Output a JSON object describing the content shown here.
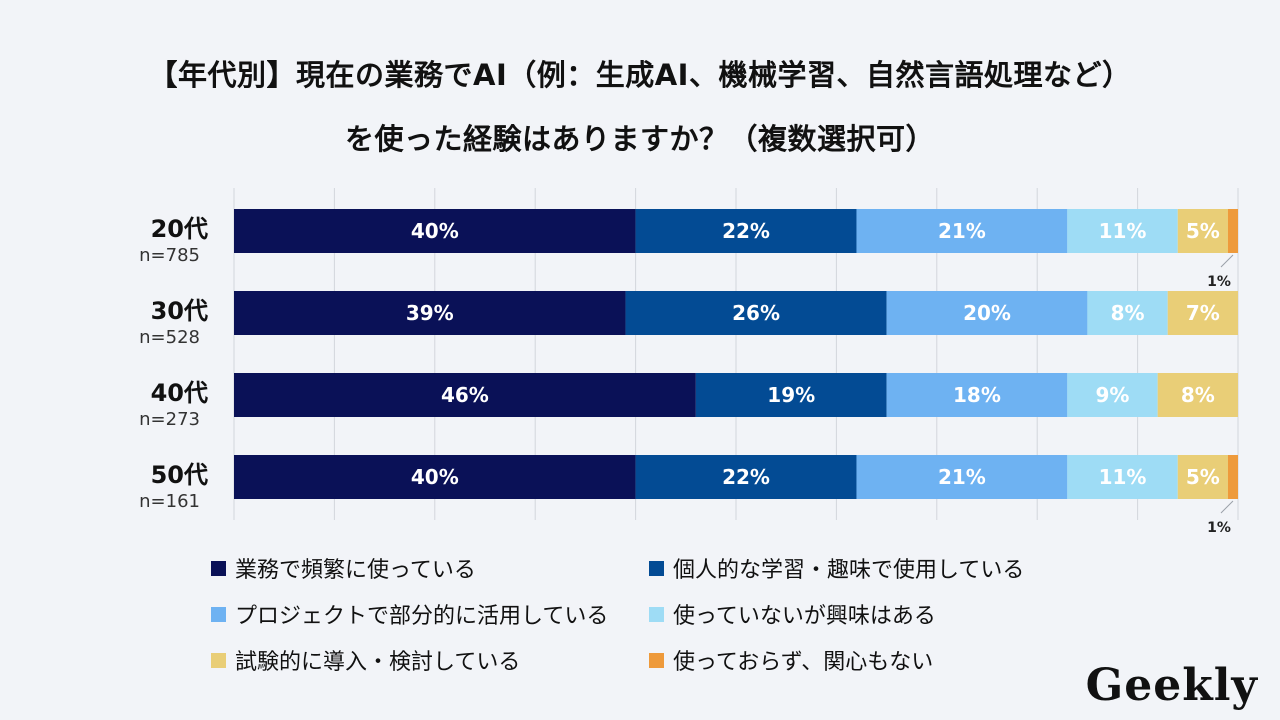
{
  "title": {
    "line1": "【年代別】現在の業務でAI（例：生成AI、機械学習、自然言語処理など）",
    "line2": "を使った経験はありますか？（複数選択可）"
  },
  "chart_data": {
    "type": "bar",
    "orientation": "horizontal-stacked-100",
    "categories": [
      "20代",
      "30代",
      "40代",
      "50代"
    ],
    "sample_sizes": [
      "n=785",
      "n=528",
      "n=273",
      "n=161"
    ],
    "series": [
      {
        "name": "業務で頻繁に使っている",
        "color": "#0a1157",
        "values": [
          40,
          39,
          46,
          40
        ],
        "labels": [
          "40%",
          "39%",
          "46%",
          "40%"
        ]
      },
      {
        "name": "個人的な学習・趣味で使用している",
        "color": "#034b94",
        "values": [
          22,
          26,
          19,
          22
        ],
        "labels": [
          "22%",
          "26%",
          "19%",
          "22%"
        ]
      },
      {
        "name": "プロジェクトで部分的に活用している",
        "color": "#6eb2f2",
        "values": [
          21,
          20,
          18,
          21
        ],
        "labels": [
          "21%",
          "20%",
          "18%",
          "21%"
        ]
      },
      {
        "name": "使っていないが興味はある",
        "color": "#9edcf5",
        "values": [
          11,
          8,
          9,
          11
        ],
        "labels": [
          "11%",
          "8%",
          "9%",
          "11%"
        ]
      },
      {
        "name": "試験的に導入・検討している",
        "color": "#e9ce77",
        "values": [
          5,
          7,
          8,
          5
        ],
        "labels": [
          "5%",
          "7%",
          "8%",
          "5%"
        ]
      },
      {
        "name": "使っておらず、関心もない",
        "color": "#ee9a3b",
        "values": [
          1,
          0,
          0,
          1
        ],
        "labels": [
          "1%",
          "",
          "",
          "1%"
        ]
      }
    ],
    "xlim": [
      0,
      100
    ],
    "grid": true,
    "legend_position": "bottom"
  },
  "brand": {
    "logo_text": "Geekly"
  }
}
